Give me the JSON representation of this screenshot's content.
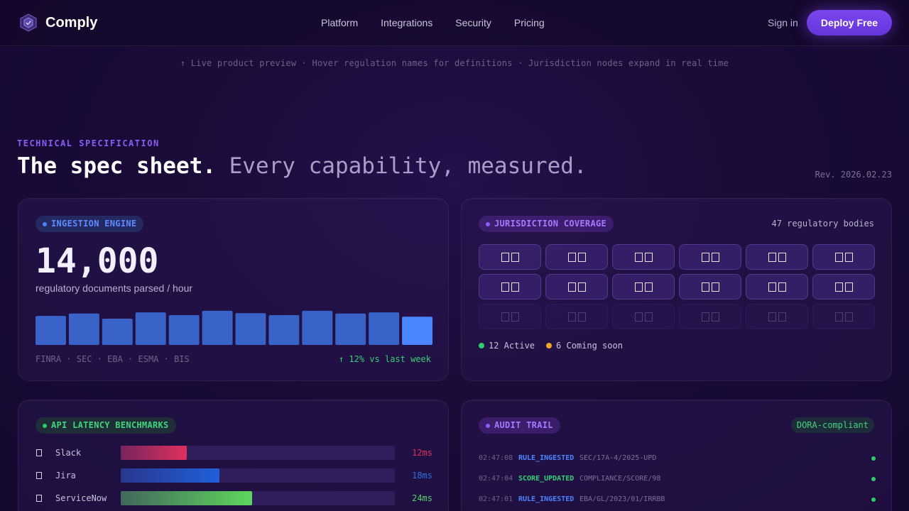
{
  "brand": {
    "name": "Comply"
  },
  "nav": {
    "links": [
      "Platform",
      "Integrations",
      "Security",
      "Pricing"
    ],
    "sign_in": "Sign in",
    "cta": "Deploy Free"
  },
  "hint": "↑ Live product preview · Hover regulation names for definitions · Jurisdiction nodes expand in real time",
  "section": {
    "eyebrow": "TECHNICAL SPECIFICATION",
    "title_strong": "The spec sheet.",
    "title_soft": "Every capability, measured.",
    "revision": "Rev. 2026.02.23"
  },
  "ingestion": {
    "label": "INGESTION ENGINE",
    "value": "14,000",
    "caption": "regulatory documents parsed / hour",
    "sources": "FINRA · SEC · EBA · ESMA · BIS",
    "delta": "↑ 12% vs last week",
    "chart_data": {
      "type": "bar",
      "values": [
        0.73,
        0.79,
        0.66,
        0.82,
        0.75,
        0.86,
        0.8,
        0.75,
        0.86,
        0.79,
        0.82,
        0.71
      ],
      "highlight_last": true
    }
  },
  "jurisdiction": {
    "label": "JURISDICTION COVERAGE",
    "bodies": "47 regulatory bodies",
    "active_count": 12,
    "soon_count": 6,
    "active_label": "12 Active",
    "soon_label": "6 Coming soon",
    "colors": {
      "active": "#2fcc6c",
      "soon": "#f5a524"
    }
  },
  "latency": {
    "label": "API LATENCY BENCHMARKS",
    "rows": [
      {
        "name": "Slack",
        "value": "12ms",
        "fraction": 0.24,
        "color": "#e0305e",
        "text_color": "#e0305e"
      },
      {
        "name": "Jira",
        "value": "18ms",
        "fraction": 0.36,
        "color": "#1f5fd9",
        "text_color": "#2f6fe0"
      },
      {
        "name": "ServiceNow",
        "value": "24ms",
        "fraction": 0.48,
        "color": "#5ed65c",
        "text_color": "#56d06a"
      }
    ]
  },
  "audit": {
    "label": "AUDIT TRAIL",
    "badge": "DORA-compliant",
    "entries": [
      {
        "time": "02:47:08",
        "event": "RULE_INGESTED",
        "ref": "SEC/17A-4/2025-UPD",
        "color": "#4f82ff"
      },
      {
        "time": "02:47:04",
        "event": "SCORE_UPDATED",
        "ref": "COMPLIANCE/SCORE/98",
        "color": "#35cf74"
      },
      {
        "time": "02:47:01",
        "event": "RULE_INGESTED",
        "ref": "EBA/GL/2023/01/IRRBB",
        "color": "#4f82ff"
      }
    ]
  }
}
